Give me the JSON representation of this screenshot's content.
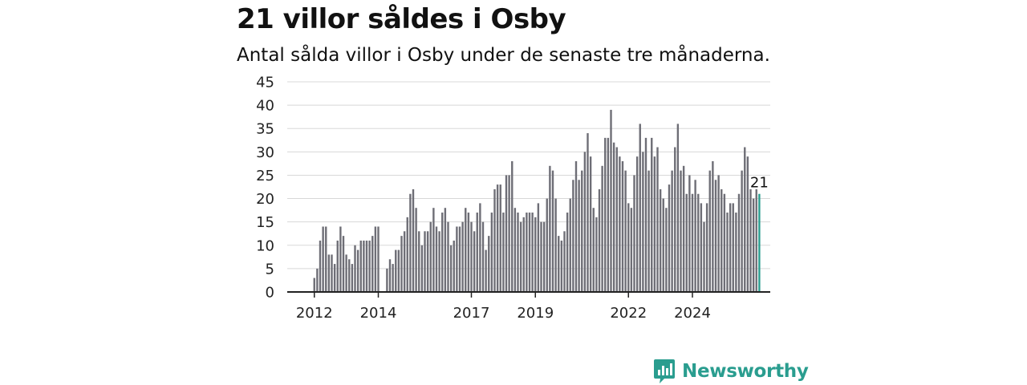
{
  "title": "21 villor såldes i Osby",
  "subtitle": "Antal sålda villor i Osby under de senaste tre månaderna.",
  "brand": {
    "name": "Newsworthy",
    "icon": "newsworthy-logo-icon",
    "color": "#2a9d8f"
  },
  "colors": {
    "bar": "#6e6e76",
    "highlight": "#2a9d8f",
    "grid": "#d8d8d8",
    "axis": "#222222"
  },
  "chart_data": {
    "type": "bar",
    "title": "21 villor såldes i Osby",
    "subtitle": "Antal sålda villor i Osby under de senaste tre månaderna.",
    "xlabel": "",
    "ylabel": "",
    "ylim": [
      0,
      45
    ],
    "yticks": [
      0,
      5,
      10,
      15,
      20,
      25,
      30,
      35,
      40,
      45
    ],
    "xtick_labels": [
      {
        "label": "2012",
        "index": 2
      },
      {
        "label": "2014",
        "index": 24
      },
      {
        "label": "2017",
        "index": 56
      },
      {
        "label": "2019",
        "index": 78
      },
      {
        "label": "2022",
        "index": 110
      },
      {
        "label": "2024",
        "index": 132
      }
    ],
    "grid": true,
    "values": [
      0,
      0,
      3,
      5,
      11,
      14,
      14,
      8,
      8,
      6,
      11,
      14,
      12,
      8,
      7,
      6,
      10,
      9,
      11,
      11,
      11,
      11,
      12,
      14,
      14,
      0,
      0,
      5,
      7,
      6,
      9,
      9,
      12,
      13,
      16,
      21,
      22,
      18,
      13,
      10,
      13,
      13,
      15,
      18,
      14,
      13,
      17,
      18,
      15,
      10,
      11,
      14,
      14,
      15,
      18,
      17,
      15,
      13,
      17,
      19,
      15,
      9,
      12,
      17,
      22,
      23,
      23,
      17,
      25,
      25,
      28,
      18,
      17,
      15,
      16,
      17,
      17,
      17,
      16,
      19,
      15,
      15,
      20,
      27,
      26,
      20,
      12,
      11,
      13,
      17,
      20,
      24,
      28,
      24,
      26,
      30,
      34,
      29,
      18,
      16,
      22,
      27,
      33,
      33,
      39,
      32,
      31,
      29,
      28,
      26,
      19,
      18,
      25,
      29,
      36,
      30,
      33,
      26,
      33,
      29,
      31,
      22,
      20,
      18,
      23,
      26,
      31,
      36,
      26,
      27,
      21,
      25,
      21,
      24,
      21,
      19,
      15,
      19,
      26,
      28,
      24,
      25,
      22,
      21,
      17,
      19,
      19,
      17,
      21,
      26,
      31,
      29,
      22,
      20,
      22,
      21
    ],
    "highlight_last": true,
    "last_value_label": "21"
  }
}
